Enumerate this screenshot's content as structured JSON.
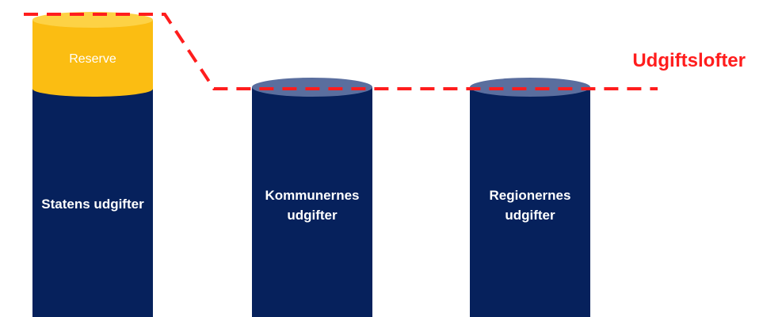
{
  "colors": {
    "cylinder_body": "#06215c",
    "cylinder_top": "#5a6e9e",
    "reserve_fill": "#fbbd12",
    "reserve_top": "#fdd245",
    "ceiling_line": "#ff1d1d",
    "label_text": "#ffffff"
  },
  "cylinders": [
    {
      "id": "staten",
      "label_lines": [
        "Statens udgifter"
      ],
      "reserve_label": "Reserve"
    },
    {
      "id": "kommuner",
      "label_lines": [
        "Kommunernes",
        "udgifter"
      ]
    },
    {
      "id": "regioner",
      "label_lines": [
        "Regionernes",
        "udgifter"
      ]
    }
  ],
  "ceiling": {
    "label": "Udgiftslofter"
  }
}
